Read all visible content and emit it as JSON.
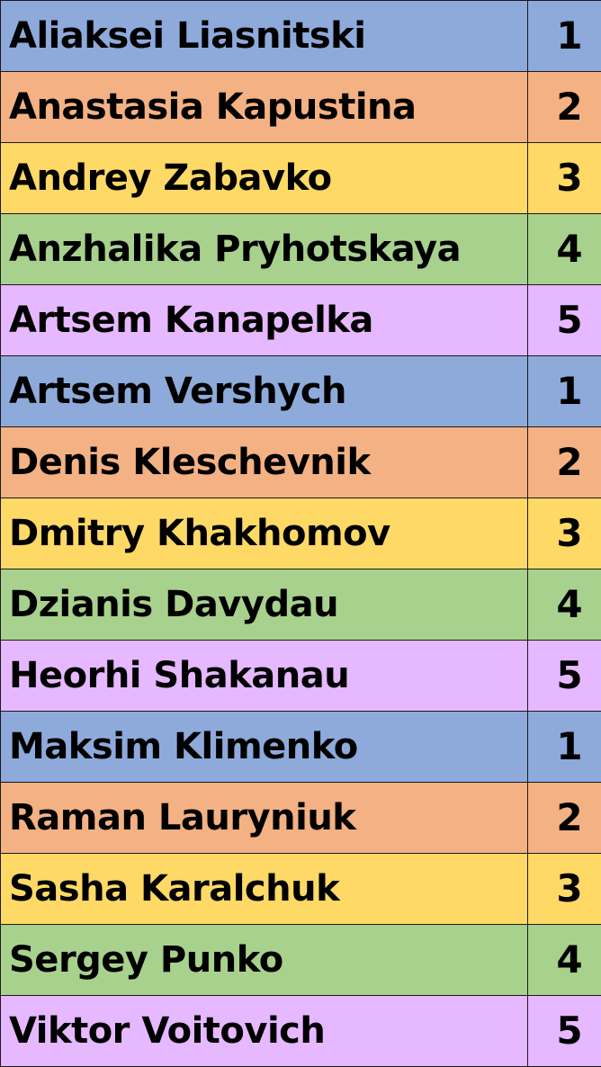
{
  "group_colors": {
    "1": "#8eaadb",
    "2": "#f4b183",
    "3": "#ffd966",
    "4": "#a9d18e",
    "5": "#e6b8ff"
  },
  "rows": [
    {
      "name": "Aliaksei Liasnitski",
      "group": "1"
    },
    {
      "name": "Anastasia Kapustina",
      "group": "2"
    },
    {
      "name": "Andrey Zabavko",
      "group": "3"
    },
    {
      "name": "Anzhalika Pryhotskaya",
      "group": "4"
    },
    {
      "name": "Artsem Kanapelka",
      "group": "5"
    },
    {
      "name": "Artsem Vershych",
      "group": "1"
    },
    {
      "name": "Denis Kleschevnik",
      "group": "2"
    },
    {
      "name": "Dmitry Khakhomov",
      "group": "3"
    },
    {
      "name": "Dzianis Davydau",
      "group": "4"
    },
    {
      "name": "Heorhi Shakanau",
      "group": "5"
    },
    {
      "name": "Maksim Klimenko",
      "group": "1"
    },
    {
      "name": "Raman Lauryniuk",
      "group": "2"
    },
    {
      "name": "Sasha Karalchuk",
      "group": "3"
    },
    {
      "name": "Sergey Punko",
      "group": "4"
    },
    {
      "name": "Viktor Voitovich",
      "group": "5"
    }
  ]
}
